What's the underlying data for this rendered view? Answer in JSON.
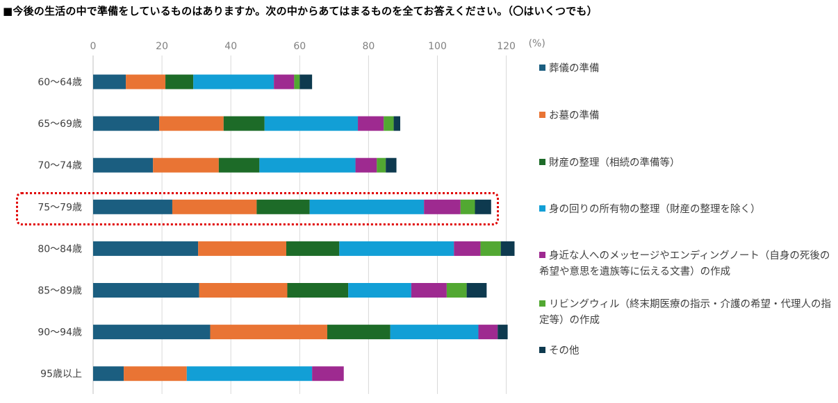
{
  "title": "■今後の生活の中で準備をしているものはありますか。次の中からあてはまるものを全てお答えください。（〇はいくつでも）",
  "chart_data": {
    "type": "bar",
    "orientation": "horizontal",
    "stacked": true,
    "title": "今後の生活の中で準備をしているものはありますか。次の中からあてはまるものを全てお答えください。（〇はいくつでも）",
    "xlabel": "",
    "unit_label": "(%)",
    "xlim": [
      0,
      120
    ],
    "xticks": [
      "0",
      "20",
      "40",
      "60",
      "80",
      "100",
      "120"
    ],
    "grid": true,
    "legend_position": "right",
    "highlighted_category": "75〜79歳",
    "categories": [
      "60〜64歳",
      "65〜69歳",
      "70〜74歳",
      "75〜79歳",
      "80〜84歳",
      "85〜89歳",
      "90〜94歳",
      "95歳以上"
    ],
    "series": [
      {
        "name": "葬儀の準備",
        "color": "#1b5e80",
        "values": [
          9.5,
          19.2,
          17.4,
          23.0,
          30.5,
          30.8,
          34.0,
          8.9
        ]
      },
      {
        "name": "お墓の準備",
        "color": "#e97434",
        "values": [
          11.5,
          18.7,
          19.1,
          24.5,
          25.6,
          25.6,
          34.0,
          18.3
        ]
      },
      {
        "name": "財産の整理（相続の準備等）",
        "color": "#1d6b28",
        "values": [
          8.1,
          11.9,
          11.8,
          15.4,
          15.4,
          17.7,
          18.3,
          0
        ]
      },
      {
        "name": "身の回りの所有物の整理（財産の整理を除く）",
        "color": "#129fd6",
        "values": [
          23.4,
          27.1,
          27.9,
          33.2,
          33.3,
          18.3,
          25.6,
          36.4
        ]
      },
      {
        "name": "身近な人へのメッセージやエンディングノート（自身の死後の希望や意思を遺族等に伝える文書）の作成",
        "color": "#9e2a90",
        "values": [
          5.9,
          7.5,
          6.2,
          10.6,
          7.7,
          10.3,
          5.6,
          9.2
        ]
      },
      {
        "name": "リビングウィル（終末期医療の指示・介護の希望・代理人の指定等）の作成",
        "color": "#52a832",
        "values": [
          1.6,
          2.9,
          2.6,
          4.2,
          5.9,
          5.8,
          0,
          0
        ]
      },
      {
        "name": "その他",
        "color": "#0e3a4f",
        "values": [
          3.6,
          1.9,
          3.1,
          4.7,
          4.0,
          5.8,
          2.9,
          0
        ]
      }
    ]
  },
  "legend": {
    "items": [
      {
        "label": "葬儀の準備",
        "color": "#1b5e80"
      },
      {
        "label": "お墓の準備",
        "color": "#e97434"
      },
      {
        "label": "財産の整理（相続の準備等）",
        "color": "#1d6b28"
      },
      {
        "label": "身の回りの所有物の整理（財産の整理を除く）",
        "color": "#129fd6"
      },
      {
        "label": "身近な人へのメッセージやエンディングノート（自身の死後の希望や意思を遺族等に伝える文書）の作成",
        "color": "#9e2a90"
      },
      {
        "label": "リビングウィル（終末期医療の指示・介護の希望・代理人の指定等）の作成",
        "color": "#52a832"
      },
      {
        "label": "その他",
        "color": "#0e3a4f"
      }
    ]
  }
}
